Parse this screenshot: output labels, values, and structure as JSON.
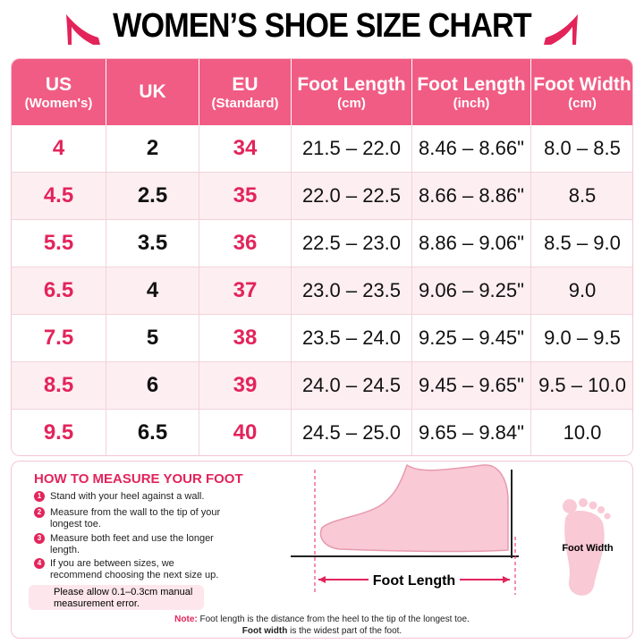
{
  "title": "WOMEN’S SHOE SIZE CHART",
  "table": {
    "header": [
      {
        "title": "US",
        "sub": "(Women's)"
      },
      {
        "title": "UK"
      },
      {
        "title": "EU",
        "sub": "(Standard)"
      },
      {
        "title": "Foot Length",
        "sub": "(cm)"
      },
      {
        "title": "Foot Length",
        "sub": "(inch)"
      },
      {
        "title": "Foot Width",
        "sub": "(cm)"
      }
    ],
    "rows": [
      [
        "4",
        "2",
        "34",
        "21.5 – 22.0",
        "8.46 – 8.66\"",
        "8.0 – 8.5"
      ],
      [
        "4.5",
        "2.5",
        "35",
        "22.0 – 22.5",
        "8.66 – 8.86\"",
        "8.5"
      ],
      [
        "5.5",
        "3.5",
        "36",
        "22.5 – 23.0",
        "8.86 – 9.06\"",
        "8.5 – 9.0"
      ],
      [
        "6.5",
        "4",
        "37",
        "23.0 – 23.5",
        "9.06 – 9.25\"",
        "9.0"
      ],
      [
        "7.5",
        "5",
        "38",
        "23.5 – 24.0",
        "9.25 – 9.45\"",
        "9.0 – 9.5"
      ],
      [
        "8.5",
        "6",
        "39",
        "24.0 – 24.5",
        "9.45 – 9.65\"",
        "9.5 – 10.0"
      ],
      [
        "9.5",
        "6.5",
        "40",
        "24.5 – 25.0",
        "9.65 – 9.84\"",
        "10.0"
      ]
    ]
  },
  "measure": {
    "heading": "HOW TO MEASURE YOUR FOOT",
    "steps": [
      {
        "number": "1",
        "text": "Stand with your heel against a wall."
      },
      {
        "number": "2",
        "text": "Measure from the wall to the tip of your longest toe."
      },
      {
        "number": "3",
        "text": "Measure both feet and use the longer length."
      },
      {
        "number": "4",
        "text": "If you are between sizes, we recommend choosing the next size up."
      }
    ],
    "tip": "Please allow 0.1–0.3cm manual measurement error.",
    "length_label": "Foot Length",
    "width_label": "Foot Width"
  },
  "note": {
    "label": "Note:",
    "line1": "Foot length is the distance from the heel to the tip of the longest toe.",
    "line2_bold": "Foot width",
    "line2": "is the widest part of the foot."
  }
}
